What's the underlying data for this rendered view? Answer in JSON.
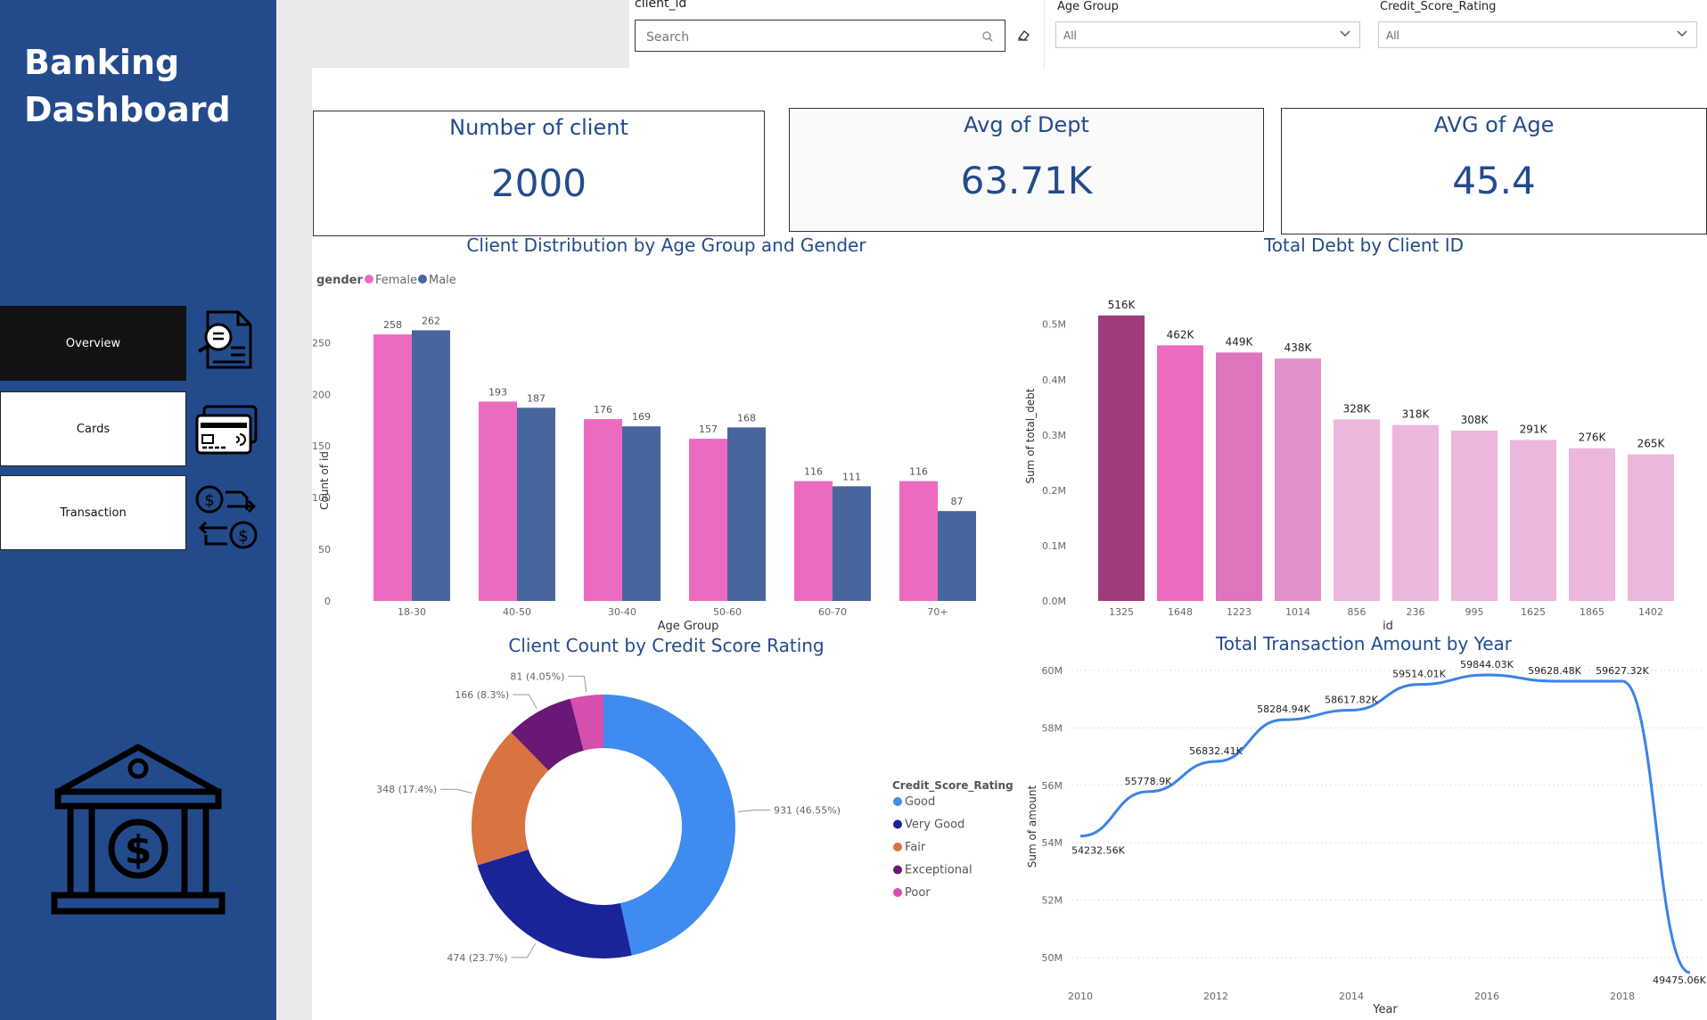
{
  "sidebar": {
    "title_line1": "Banking",
    "title_line2": "Dashboard",
    "nav": [
      {
        "label": "Overview",
        "icon": "report-search-icon"
      },
      {
        "label": "Cards",
        "icon": "credit-card-icon"
      },
      {
        "label": "Transaction",
        "icon": "currency-exchange-icon"
      }
    ],
    "logo_icon": "bank-building-icon"
  },
  "filters": {
    "client_label": "client_id",
    "search_placeholder": "Search",
    "age_label": "Age Group",
    "age_value": "All",
    "credit_label": "Credit_Score_Rating",
    "credit_value": "All"
  },
  "kpis": [
    {
      "title": "Number of client",
      "value": "2000"
    },
    {
      "title": "Avg of Dept",
      "value": "63.71K"
    },
    {
      "title": "AVG of Age",
      "value": "45.4"
    }
  ],
  "colors": {
    "sidebar": "#234b8c",
    "female": "#ec6bc0",
    "male": "#48659d",
    "line": "#3b82e8"
  },
  "chart_data": [
    {
      "type": "bar",
      "title": "Client Distribution by Age Group and Gender",
      "legend_title": "gender",
      "categories": [
        "18-30",
        "40-50",
        "30-40",
        "50-60",
        "60-70",
        "70+"
      ],
      "series": [
        {
          "name": "Female",
          "values": [
            258,
            193,
            176,
            157,
            116,
            116
          ]
        },
        {
          "name": "Male",
          "values": [
            262,
            187,
            169,
            168,
            111,
            87
          ]
        }
      ],
      "xlabel": "Age Group",
      "ylabel": "Count of id",
      "yticks": [
        0,
        50,
        100,
        150,
        200,
        250
      ],
      "ylim": [
        0,
        290
      ]
    },
    {
      "type": "bar",
      "title": "Total Debt by Client ID",
      "categories": [
        "1325",
        "1648",
        "1223",
        "1014",
        "856",
        "236",
        "995",
        "1625",
        "1865",
        "1402"
      ],
      "values": [
        516,
        462,
        449,
        438,
        328,
        318,
        308,
        291,
        276,
        265
      ],
      "labels": [
        "516K",
        "462K",
        "449K",
        "438K",
        "328K",
        "318K",
        "308K",
        "291K",
        "276K",
        "265K"
      ],
      "bar_colors": [
        "#a03b7c",
        "#ec6bc0",
        "#de75bd",
        "#e291cb",
        "#edb7dc",
        "#edb7dc",
        "#edb7dc",
        "#edb7dc",
        "#edb7dc",
        "#edb7dc"
      ],
      "xlabel": "id",
      "ylabel": "Sum of total_debt",
      "ytick_values": [
        0,
        100,
        200,
        300,
        400,
        500
      ],
      "ytick_labels": [
        "0.0M",
        "0.1M",
        "0.2M",
        "0.3M",
        "0.4M",
        "0.5M"
      ],
      "ylim": [
        0,
        535
      ]
    },
    {
      "type": "pie",
      "title": "Client Count by Credit Score Rating",
      "legend_title": "Credit_Score_Rating",
      "slices": [
        {
          "name": "Good",
          "value": 931,
          "label": "931 (46.55%)",
          "color": "#3f8bf0"
        },
        {
          "name": "Very Good",
          "value": 474,
          "label": "474 (23.7%)",
          "color": "#1a2398"
        },
        {
          "name": "Fair",
          "value": 348,
          "label": "348 (17.4%)",
          "color": "#d9733f"
        },
        {
          "name": "Exceptional",
          "value": 166,
          "label": "166 (8.3%)",
          "color": "#6a1877"
        },
        {
          "name": "Poor",
          "value": 81,
          "label": "81 (4.05%)",
          "color": "#d54fae"
        }
      ]
    },
    {
      "type": "line",
      "title": "Total Transaction Amount by Year",
      "x": [
        2010,
        2011,
        2012,
        2013,
        2014,
        2015,
        2016,
        2017,
        2018,
        2019
      ],
      "values": [
        54232.56,
        55778.9,
        56832.41,
        58284.94,
        58617.82,
        59514.01,
        59844.03,
        59628.48,
        59627.32,
        49475.06
      ],
      "labels": [
        "54232.56K",
        "55778.9K",
        "56832.41K",
        "58284.94K",
        "58617.82K",
        "59514.01K",
        "59844.03K",
        "59628.48K",
        "59627.32K",
        "49475.06K"
      ],
      "xticks": [
        2010,
        2012,
        2014,
        2016,
        2018
      ],
      "ytick_values": [
        50000,
        52000,
        54000,
        56000,
        58000,
        60000
      ],
      "ytick_labels": [
        "50M",
        "52M",
        "54M",
        "56M",
        "58M",
        "60M"
      ],
      "xlabel": "Year",
      "ylabel": "Sum of amount",
      "ylim": [
        49000,
        60000
      ]
    }
  ]
}
